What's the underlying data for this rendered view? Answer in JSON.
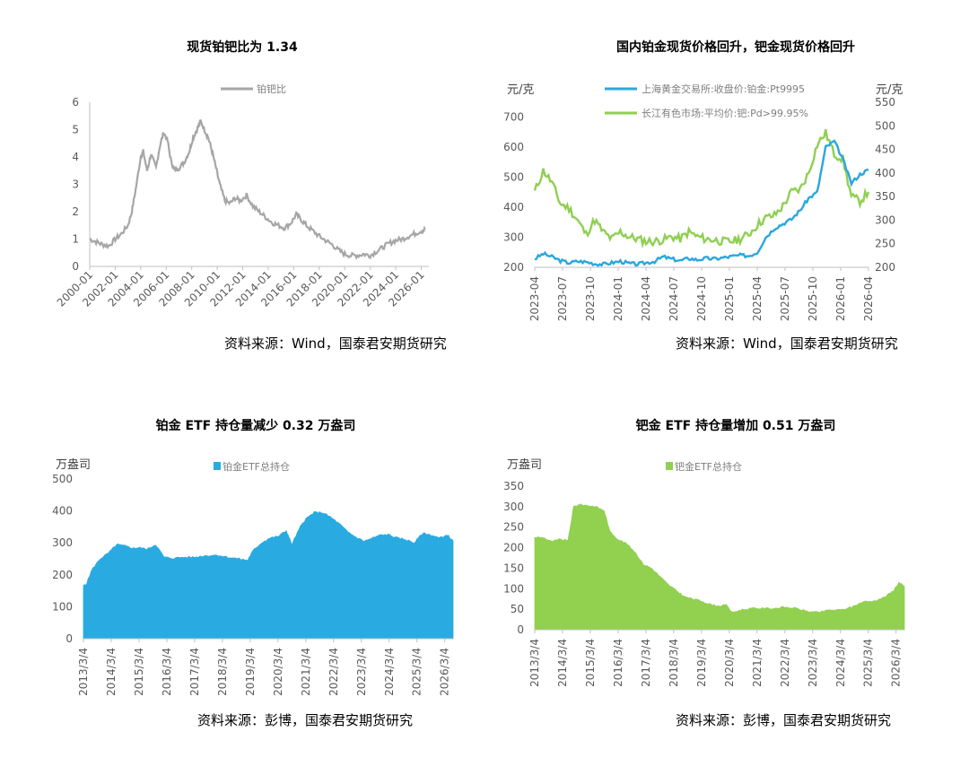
{
  "chart_data": [
    {
      "type": "line",
      "title": "现货铂钯比为 1.34",
      "source": "资料来源：Wind，国泰君安期货研究",
      "ylim": [
        0,
        6
      ],
      "yticks": [
        "0",
        "1",
        "2",
        "3",
        "4",
        "5",
        "6"
      ],
      "xticks": [
        "2000-01",
        "2002-01",
        "2004-01",
        "2006-01",
        "2008-01",
        "2010-01",
        "2012-01",
        "2014-01",
        "2016-01",
        "2018-01",
        "2020-01",
        "2022-01",
        "2024-01",
        "2026-01"
      ],
      "legend": "top-center",
      "colors": {
        "series": "#a6a6a6"
      },
      "series": [
        {
          "name": "铂钯比",
          "x": [
            2000.0,
            2000.5,
            2001.0,
            2001.5,
            2002.0,
            2002.5,
            2003.0,
            2003.3,
            2003.6,
            2004.0,
            2004.2,
            2004.5,
            2004.8,
            2005.2,
            2005.5,
            2005.8,
            2006.1,
            2006.4,
            2006.7,
            2007.0,
            2007.4,
            2007.8,
            2008.1,
            2008.4,
            2008.7,
            2009.0,
            2009.3,
            2009.6,
            2009.9,
            2010.2,
            2010.6,
            2011.0,
            2011.4,
            2011.8,
            2012.3,
            2012.8,
            2013.3,
            2013.8,
            2014.3,
            2014.8,
            2015.3,
            2015.8,
            2016.2,
            2016.6,
            2017.0,
            2017.5,
            2018.0,
            2018.5,
            2019.0,
            2019.5,
            2020.0,
            2020.5,
            2021.0,
            2021.5,
            2022.0,
            2022.5,
            2023.0,
            2023.5,
            2024.0,
            2024.5,
            2025.0,
            2025.5,
            2026.0,
            2026.3
          ],
          "values": [
            1.0,
            0.9,
            0.8,
            0.75,
            1.0,
            1.2,
            1.5,
            2.0,
            2.8,
            4.0,
            4.2,
            3.5,
            4.1,
            3.6,
            4.4,
            4.9,
            4.6,
            3.8,
            3.5,
            3.6,
            3.8,
            4.2,
            4.7,
            5.0,
            5.3,
            5.0,
            4.7,
            4.2,
            3.6,
            3.0,
            2.4,
            2.3,
            2.5,
            2.4,
            2.6,
            2.2,
            2.0,
            1.8,
            1.6,
            1.5,
            1.4,
            1.6,
            1.9,
            1.7,
            1.5,
            1.3,
            1.1,
            0.95,
            0.8,
            0.6,
            0.45,
            0.4,
            0.4,
            0.45,
            0.4,
            0.55,
            0.7,
            0.85,
            0.95,
            1.0,
            1.1,
            1.2,
            1.3,
            1.34
          ]
        }
      ]
    },
    {
      "type": "line",
      "title": "国内铂金现货价格回升，钯金现货价格回升",
      "source": "资料来源：Wind，国泰君安期货研究",
      "yleft_label": "元/克",
      "yright_label": "元/克",
      "ylim_left": [
        200,
        750
      ],
      "ylim_right": [
        200,
        550
      ],
      "yticks_left": [
        "200",
        "300",
        "400",
        "500",
        "600",
        "700"
      ],
      "yticks_right": [
        "200",
        "250",
        "300",
        "350",
        "400",
        "450",
        "500",
        "550"
      ],
      "xticks": [
        "2023-04",
        "2023-07",
        "2023-10",
        "2024-01",
        "2024-04",
        "2024-07",
        "2024-10",
        "2025-01",
        "2025-04",
        "2025-07",
        "2025-10",
        "2026-01",
        "2026-04"
      ],
      "legend": "top-center",
      "colors": {
        "platinum": "#29a7df",
        "palladium": "#8fcf52"
      },
      "series": [
        {
          "name": "上海黄金交易所:收盘价:铂金:Pt9995",
          "axis": "left",
          "x": [
            0,
            1,
            2,
            3,
            4,
            5,
            6,
            7,
            8,
            9,
            10,
            11,
            12,
            13,
            14,
            15,
            16,
            17,
            18,
            19,
            20,
            21,
            22,
            23,
            24,
            25,
            26,
            27,
            28,
            29,
            30,
            31,
            32,
            33,
            34,
            35,
            36,
            37,
            38,
            39
          ],
          "values": [
            228,
            245,
            235,
            222,
            215,
            220,
            218,
            212,
            210,
            215,
            220,
            213,
            210,
            215,
            220,
            235,
            228,
            222,
            230,
            225,
            230,
            228,
            232,
            236,
            240,
            238,
            250,
            300,
            330,
            345,
            360,
            390,
            430,
            450,
            600,
            620,
            560,
            480,
            510,
            525
          ]
        },
        {
          "name": "长江有色市场:平均价:钯:Pd>99.95%",
          "axis": "right",
          "x": [
            0,
            1,
            2,
            3,
            4,
            5,
            6,
            7,
            8,
            9,
            10,
            11,
            12,
            13,
            14,
            15,
            16,
            17,
            18,
            19,
            20,
            21,
            22,
            23,
            24,
            25,
            26,
            27,
            28,
            29,
            30,
            31,
            32,
            33,
            34,
            35,
            36,
            37,
            38,
            39
          ],
          "values": [
            360,
            405,
            380,
            335,
            325,
            300,
            270,
            300,
            275,
            260,
            275,
            265,
            260,
            255,
            255,
            258,
            265,
            260,
            275,
            265,
            260,
            258,
            255,
            255,
            260,
            270,
            290,
            305,
            310,
            330,
            360,
            365,
            400,
            460,
            485,
            440,
            430,
            350,
            340,
            360
          ]
        }
      ]
    },
    {
      "type": "area",
      "title": "铂金 ETF 持仓量减少 0.32 万盎司",
      "source": "资料来源：彭博，国泰君安期货研究",
      "ylabel": "万盎司",
      "ylim": [
        0,
        500
      ],
      "yticks": [
        "0",
        "100",
        "200",
        "300",
        "400",
        "500"
      ],
      "xticks": [
        "2013/3/4",
        "2014/3/4",
        "2015/3/4",
        "2016/3/4",
        "2017/3/4",
        "2018/3/4",
        "2019/3/4",
        "2020/3/4",
        "2021/3/4",
        "2022/3/4",
        "2023/3/4",
        "2024/3/4",
        "2025/3/4",
        "2026/3/4"
      ],
      "legend": "top-center",
      "colors": {
        "series": "#29abe2"
      },
      "series": [
        {
          "name": "铂金ETF总持仓",
          "x": [
            2013.0,
            2013.1,
            2013.3,
            2013.6,
            2013.9,
            2014.2,
            2014.5,
            2014.8,
            2015.0,
            2015.3,
            2015.6,
            2015.9,
            2016.2,
            2016.6,
            2017.0,
            2017.4,
            2017.8,
            2018.2,
            2018.6,
            2018.9,
            2019.1,
            2019.4,
            2019.7,
            2020.0,
            2020.3,
            2020.5,
            2020.8,
            2021.0,
            2021.3,
            2021.6,
            2021.9,
            2022.2,
            2022.5,
            2022.8,
            2023.1,
            2023.4,
            2023.7,
            2024.0,
            2024.3,
            2024.6,
            2024.9,
            2025.2,
            2025.5,
            2025.8,
            2026.1,
            2026.3
          ],
          "values": [
            165,
            170,
            215,
            250,
            268,
            295,
            290,
            283,
            285,
            280,
            295,
            255,
            252,
            255,
            255,
            260,
            262,
            255,
            250,
            245,
            275,
            300,
            315,
            320,
            338,
            295,
            350,
            375,
            395,
            395,
            380,
            360,
            335,
            318,
            305,
            315,
            325,
            325,
            315,
            310,
            300,
            330,
            325,
            315,
            325,
            305
          ]
        }
      ]
    },
    {
      "type": "area",
      "title": "钯金 ETF 持仓量增加 0.51 万盎司",
      "source": "资料来源：彭博，国泰君安期货研究",
      "ylabel": "万盎司",
      "ylim": [
        0,
        350
      ],
      "yticks": [
        "0",
        "50",
        "100",
        "150",
        "200",
        "250",
        "300",
        "350"
      ],
      "xticks": [
        "2013/3/4",
        "2014/3/4",
        "2015/3/4",
        "2016/3/4",
        "2017/3/4",
        "2018/3/4",
        "2019/3/4",
        "2020/3/4",
        "2021/3/4",
        "2022/3/4",
        "2023/3/4",
        "2024/3/4",
        "2025/3/4",
        "2026/3/4"
      ],
      "legend": "top-center",
      "colors": {
        "series": "#92d050"
      },
      "series": [
        {
          "name": "钯金ETF总持仓",
          "x": [
            2013.0,
            2013.3,
            2013.6,
            2013.9,
            2014.2,
            2014.4,
            2014.6,
            2014.9,
            2015.2,
            2015.5,
            2015.7,
            2016.0,
            2016.3,
            2016.6,
            2016.9,
            2017.2,
            2017.5,
            2017.8,
            2018.1,
            2018.4,
            2018.7,
            2019.0,
            2019.3,
            2019.6,
            2019.9,
            2020.1,
            2020.4,
            2020.8,
            2021.2,
            2021.6,
            2022.0,
            2022.4,
            2022.8,
            2023.2,
            2023.6,
            2024.0,
            2024.4,
            2024.8,
            2025.2,
            2025.6,
            2025.9,
            2026.1,
            2026.3
          ],
          "values": [
            225,
            225,
            215,
            220,
            218,
            300,
            305,
            303,
            300,
            290,
            240,
            220,
            210,
            190,
            160,
            150,
            130,
            110,
            95,
            80,
            75,
            70,
            62,
            58,
            60,
            42,
            48,
            52,
            52,
            52,
            55,
            52,
            45,
            42,
            48,
            48,
            55,
            68,
            70,
            80,
            95,
            115,
            105
          ]
        }
      ]
    }
  ]
}
